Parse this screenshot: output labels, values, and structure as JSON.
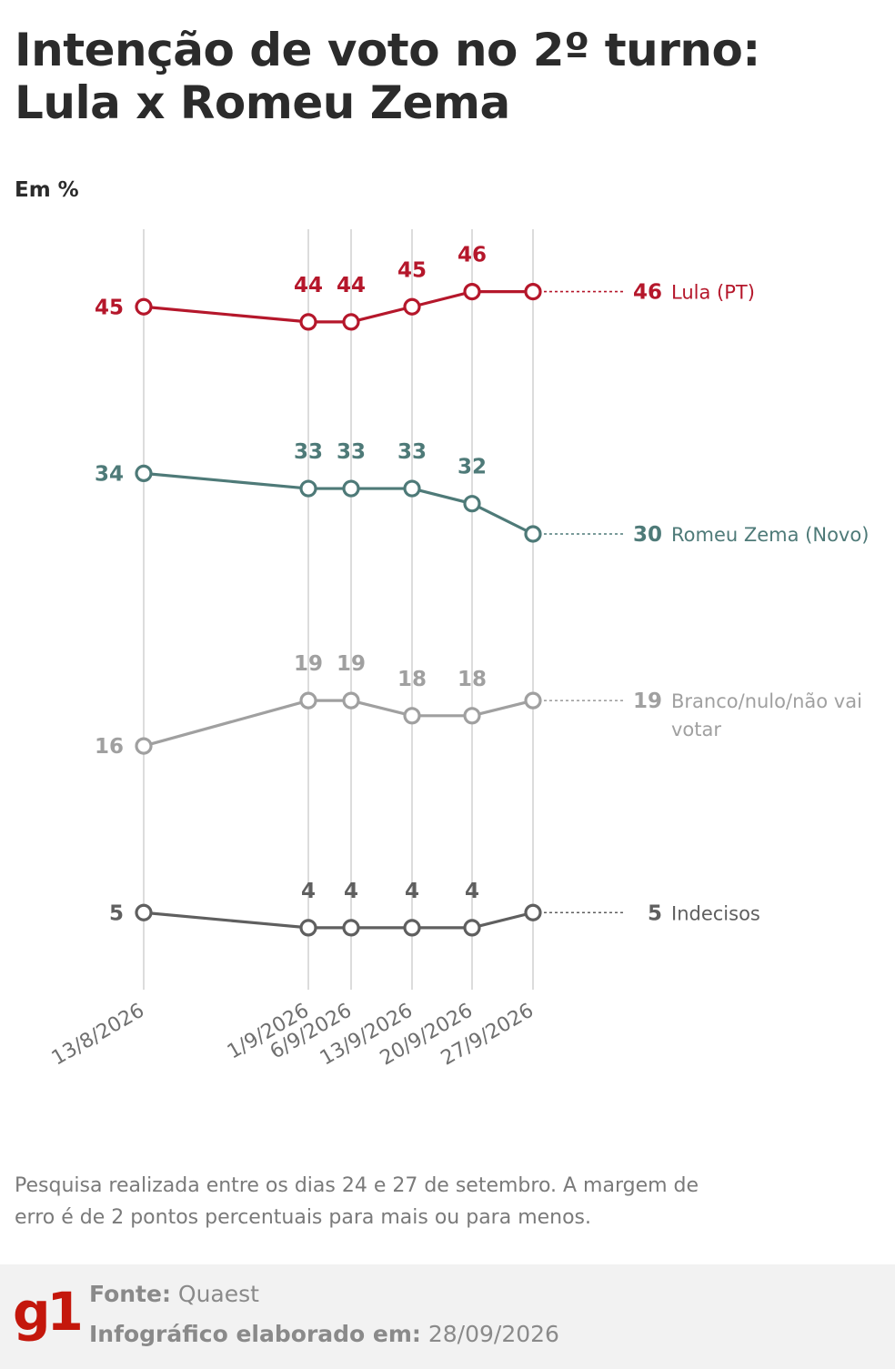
{
  "title": "Intenção de voto no 2º turno: Lula x Romeu Zema",
  "unit": "Em %",
  "note": "Pesquisa realizada entre os dias 24 e 27 de setembro. A margem de erro é de 2 pontos percentuais para mais ou para menos.",
  "footer": {
    "logo": "g1",
    "source_label": "Fonte:",
    "source_value": "Quaest",
    "date_label": "Infográfico elaborado em:",
    "date_value": "28/09/2026"
  },
  "chart_data": {
    "type": "line",
    "x": [
      "13/8/2026",
      "1/9/2026",
      "6/9/2026",
      "13/9/2026",
      "20/9/2026",
      "27/9/2026"
    ],
    "grid": "vertical lines at each survey date",
    "series": [
      {
        "name": "Lula (PT)",
        "color": "#b5172b",
        "values": [
          45,
          44,
          44,
          45,
          46,
          46
        ]
      },
      {
        "name": "Romeu Zema (Novo)",
        "color": "#4e7a78",
        "values": [
          34,
          33,
          33,
          33,
          32,
          30
        ]
      },
      {
        "name": "Branco/nulo/não vai votar",
        "color": "#a0a0a0",
        "values": [
          16,
          19,
          19,
          18,
          18,
          19
        ]
      },
      {
        "name": "Indecisos",
        "color": "#5f5f5f",
        "values": [
          5,
          4,
          4,
          4,
          4,
          5
        ]
      }
    ]
  }
}
